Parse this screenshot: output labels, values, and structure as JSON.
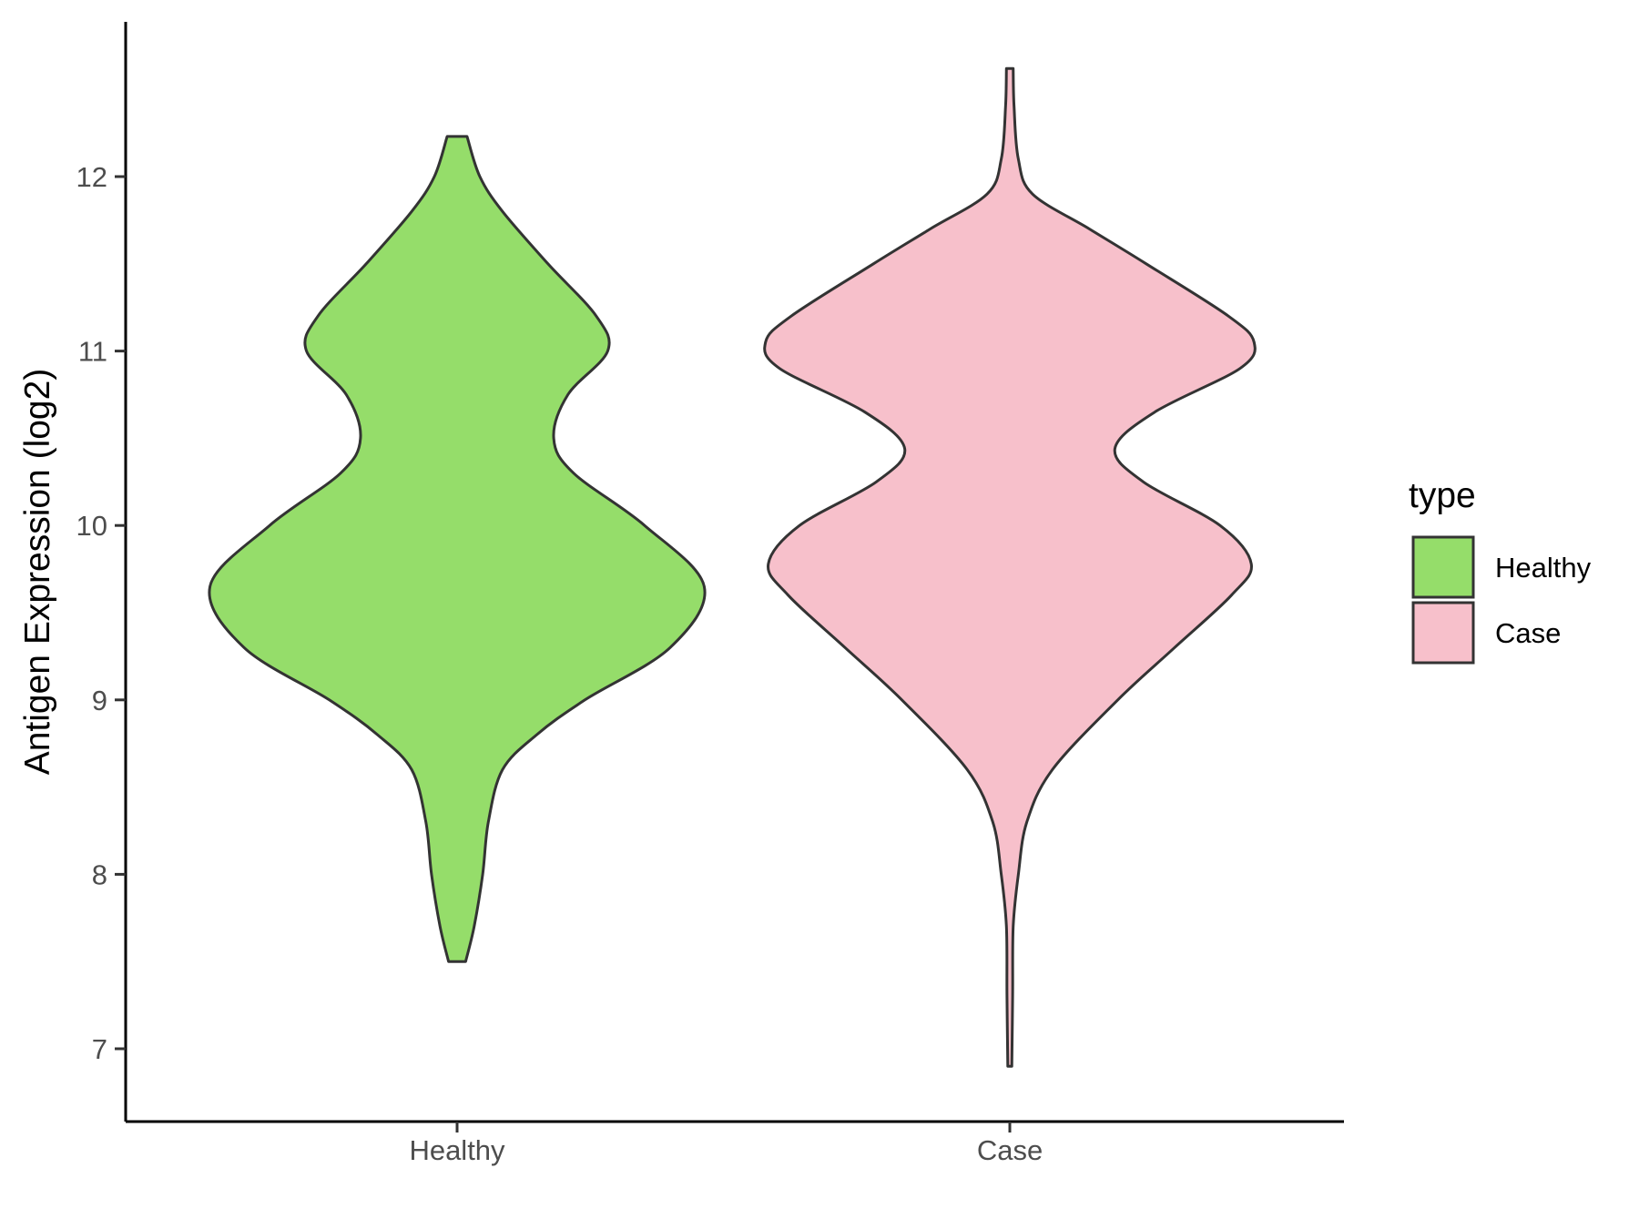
{
  "chart_data": {
    "type": "violin",
    "title": "",
    "xlabel": "",
    "ylabel": "Antigen Expression (log2)",
    "ylim": [
      6.6,
      12.9
    ],
    "yticks": [
      7,
      8,
      9,
      10,
      11,
      12
    ],
    "grid": false,
    "categories": [
      "Healthy",
      "Case"
    ],
    "legend": {
      "title": "type",
      "position": "right",
      "entries": [
        {
          "label": "Healthy",
          "color": "#95dd6a"
        },
        {
          "label": "Case",
          "color": "#f7c0cb"
        }
      ]
    },
    "series": [
      {
        "category": "Healthy",
        "color": "#95dd6a",
        "min": 7.5,
        "max": 12.23,
        "density_profile": [
          [
            7.5,
            0.03
          ],
          [
            7.7,
            0.06
          ],
          [
            8.0,
            0.09
          ],
          [
            8.3,
            0.11
          ],
          [
            8.6,
            0.16
          ],
          [
            8.8,
            0.28
          ],
          [
            9.0,
            0.45
          ],
          [
            9.3,
            0.75
          ],
          [
            9.65,
            0.87
          ],
          [
            10.0,
            0.66
          ],
          [
            10.3,
            0.41
          ],
          [
            10.5,
            0.34
          ],
          [
            10.75,
            0.39
          ],
          [
            11.0,
            0.53
          ],
          [
            11.2,
            0.49
          ],
          [
            11.5,
            0.32
          ],
          [
            11.8,
            0.16
          ],
          [
            12.0,
            0.08
          ],
          [
            12.23,
            0.035
          ]
        ]
      },
      {
        "category": "Case",
        "color": "#f7c0cb",
        "min": 6.9,
        "max": 12.62,
        "density_profile": [
          [
            6.9,
            0.007
          ],
          [
            7.3,
            0.01
          ],
          [
            7.7,
            0.012
          ],
          [
            8.0,
            0.03
          ],
          [
            8.3,
            0.06
          ],
          [
            8.6,
            0.15
          ],
          [
            9.0,
            0.38
          ],
          [
            9.3,
            0.58
          ],
          [
            9.6,
            0.78
          ],
          [
            9.78,
            0.85
          ],
          [
            10.0,
            0.74
          ],
          [
            10.25,
            0.47
          ],
          [
            10.44,
            0.37
          ],
          [
            10.65,
            0.51
          ],
          [
            10.9,
            0.81
          ],
          [
            11.05,
            0.86
          ],
          [
            11.2,
            0.77
          ],
          [
            11.5,
            0.48
          ],
          [
            11.7,
            0.28
          ],
          [
            11.9,
            0.08
          ],
          [
            12.1,
            0.03
          ],
          [
            12.4,
            0.015
          ],
          [
            12.62,
            0.012
          ]
        ]
      }
    ]
  }
}
